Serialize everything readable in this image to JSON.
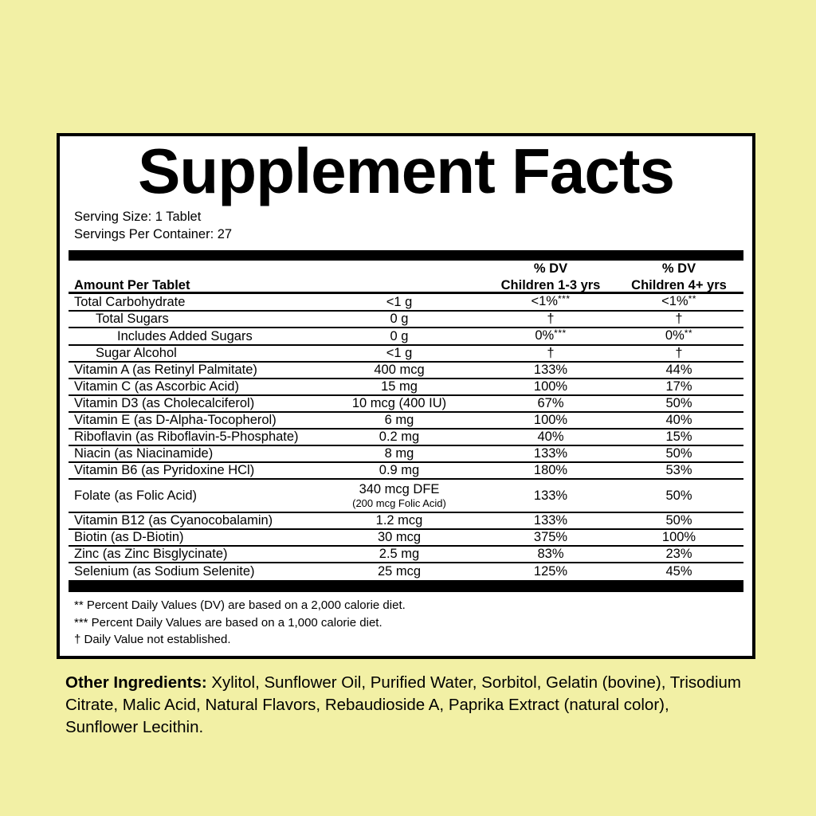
{
  "colors": {
    "background": "#f2f0a5",
    "panel_background": "#ffffff",
    "ink": "#000000"
  },
  "label": {
    "title": "Supplement Facts",
    "serving_size": "Serving Size: 1 Tablet",
    "servings_per_container": "Servings Per Container: 27",
    "columns": {
      "amount": "Amount Per Tablet",
      "dv1": {
        "line1": "% DV",
        "line2": "Children 1-3 yrs"
      },
      "dv2": {
        "line1": "% DV",
        "line2": "Children 4+ yrs"
      }
    },
    "rows": [
      {
        "name": "Total Carbohydrate",
        "indent": 0,
        "amount": "<1 g",
        "dv1": "<1%",
        "dv1_sup": "***",
        "dv2": "<1%",
        "dv2_sup": "**"
      },
      {
        "name": "Total Sugars",
        "indent": 1,
        "amount": "0 g",
        "dv1": "†",
        "dv2": "†"
      },
      {
        "name": "Includes Added Sugars",
        "indent": 2,
        "amount": "0 g",
        "dv1": "0%",
        "dv1_sup": "***",
        "dv2": "0%",
        "dv2_sup": "**"
      },
      {
        "name": "Sugar Alcohol",
        "indent": 1,
        "amount": "<1 g",
        "dv1": "†",
        "dv2": "†"
      },
      {
        "name": "Vitamin A (as Retinyl Palmitate)",
        "indent": 0,
        "amount": "400 mcg",
        "dv1": "133%",
        "dv2": "44%"
      },
      {
        "name": "Vitamin C (as Ascorbic Acid)",
        "indent": 0,
        "amount": "15 mg",
        "dv1": "100%",
        "dv2": "17%"
      },
      {
        "name": "Vitamin D3 (as Cholecalciferol)",
        "indent": 0,
        "amount": "10 mcg  (400 IU)",
        "dv1": "67%",
        "dv2": "50%"
      },
      {
        "name": "Vitamin E (as D-Alpha-Tocopherol)",
        "indent": 0,
        "amount": "6 mg",
        "dv1": "100%",
        "dv2": "40%"
      },
      {
        "name": "Riboflavin (as Riboflavin-5-Phosphate)",
        "indent": 0,
        "amount": "0.2 mg",
        "dv1": "40%",
        "dv2": "15%"
      },
      {
        "name": "Niacin (as Niacinamide)",
        "indent": 0,
        "amount": "8 mg",
        "dv1": "133%",
        "dv2": "50%"
      },
      {
        "name": "Vitamin B6 (as Pyridoxine HCl)",
        "indent": 0,
        "amount": "0.9 mg",
        "dv1": "180%",
        "dv2": "53%"
      },
      {
        "name": "Folate (as Folic Acid)",
        "indent": 0,
        "amount": "340 mcg  DFE",
        "amount_note": "(200 mcg Folic Acid)",
        "dv1": "133%",
        "dv2": "50%"
      },
      {
        "name": "Vitamin B12 (as Cyanocobalamin)",
        "indent": 0,
        "amount": "1.2 mcg",
        "dv1": "133%",
        "dv2": "50%"
      },
      {
        "name": "Biotin (as D-Biotin)",
        "indent": 0,
        "amount": "30 mcg",
        "dv1": "375%",
        "dv2": "100%"
      },
      {
        "name": "Zinc (as Zinc Bisglycinate)",
        "indent": 0,
        "amount": "2.5 mg",
        "dv1": "83%",
        "dv2": "23%"
      },
      {
        "name": "Selenium (as Sodium Selenite)",
        "indent": 0,
        "amount": "25 mcg",
        "dv1": "125%",
        "dv2": "45%"
      }
    ],
    "footnotes": [
      "** Percent Daily Values (DV) are based on a 2,000 calorie diet.",
      "*** Percent Daily Values are based on a 1,000 calorie diet.",
      "† Daily Value not established."
    ]
  },
  "other_ingredients": {
    "label": "Other Ingredients:",
    "text": " Xylitol, Sunflower Oil, Purified Water, Sorbitol, Gelatin (bovine), Trisodium Citrate, Malic Acid, Natural Flavors, Rebaudioside A, Paprika Extract (natural color), Sunflower Lecithin."
  }
}
